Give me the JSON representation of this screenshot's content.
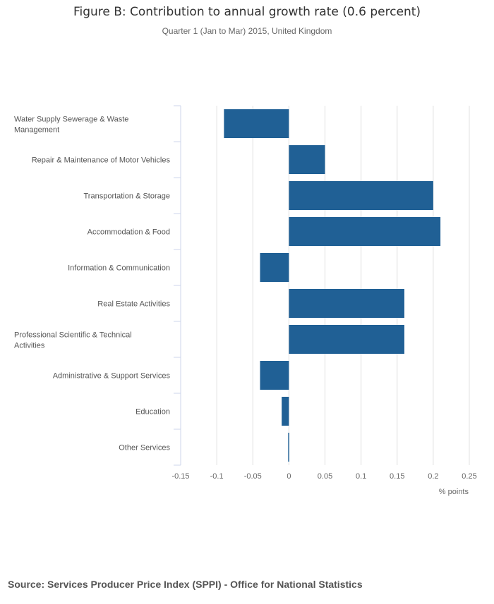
{
  "chart_data": {
    "type": "bar",
    "orientation": "horizontal",
    "title": "Figure B: Contribution to annual growth rate (0.6 percent)",
    "subtitle": "Quarter 1 (Jan to Mar) 2015, United Kingdom",
    "xlabel": "% points",
    "ylabel": "",
    "categories": [
      [
        "Water Supply Sewerage & Waste",
        "Management"
      ],
      [
        "Repair & Maintenance of Motor Vehicles"
      ],
      [
        "Transportation & Storage"
      ],
      [
        "Accommodation & Food"
      ],
      [
        "Information & Communication"
      ],
      [
        "Real Estate Activities"
      ],
      [
        "Professional Scientific & Technical",
        "Activities"
      ],
      [
        "Administrative & Support Services"
      ],
      [
        "Education"
      ],
      [
        "Other Services"
      ]
    ],
    "values": [
      -0.09,
      0.05,
      0.2,
      0.21,
      -0.04,
      0.16,
      0.16,
      -0.04,
      -0.01,
      -0.001
    ],
    "xlim": [
      -0.15,
      0.25
    ],
    "xticks": [
      "-0.15",
      "-0.1",
      "-0.05",
      "0",
      "0.05",
      "0.1",
      "0.15",
      "0.2",
      "0.25"
    ],
    "grid": true,
    "bar_color": "#206095"
  },
  "source": "Source: Services Producer Price Index (SPPI) - Office for National Statistics"
}
